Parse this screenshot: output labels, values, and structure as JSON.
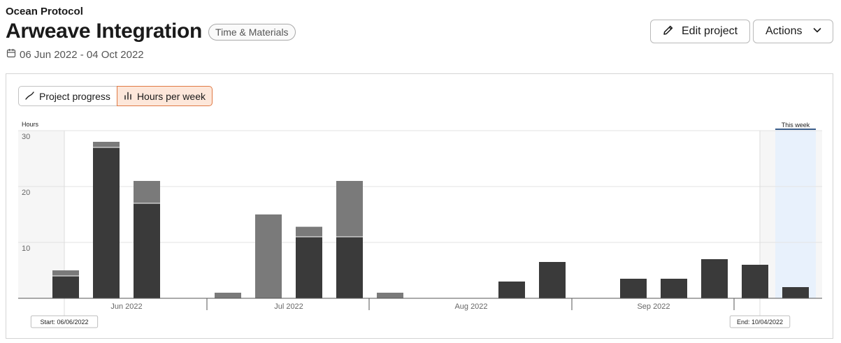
{
  "header": {
    "client": "Ocean Protocol",
    "title": "Arweave Integration",
    "badge": "Time & Materials",
    "date_range": "06 Jun 2022 - 04 Oct 2022"
  },
  "actions": {
    "edit_label": "Edit project",
    "actions_label": "Actions"
  },
  "icons": {
    "calendar": "calendar-icon",
    "edit": "pencil-icon",
    "actions": "chevron-down-icon",
    "progress": "line-chart-icon",
    "hours": "bar-chart-icon"
  },
  "colors": {
    "dark_bar": "#3a3a3a",
    "light_bar": "#7a7a7a",
    "active_toggle_bg": "#fde7da",
    "active_toggle_border": "#e07a45",
    "this_week_fill": "#e8f1fc",
    "this_week_line": "#3a5d8a"
  },
  "toggle": {
    "progress_label": "Project progress",
    "hours_label": "Hours per week",
    "active": "Hours per week"
  },
  "chart_data": {
    "type": "bar",
    "stacked": true,
    "ylabel": "Hours",
    "ylim": [
      0,
      30
    ],
    "yticks": [
      10,
      20,
      30
    ],
    "months": [
      "Jun 2022",
      "Jul 2022",
      "Aug 2022",
      "Sep 2022"
    ],
    "weeks": 19,
    "start_label": "Start: 06/06/2022",
    "end_label": "End: 10/04/2022",
    "this_week_label": "This week",
    "this_week_index": 18,
    "series": [
      {
        "values": [
          4,
          27,
          17,
          0,
          0,
          0,
          11,
          11,
          0,
          0,
          0,
          3,
          6.5,
          0,
          3.5,
          3.5,
          7,
          6,
          2
        ]
      },
      {
        "values": [
          1,
          1,
          4,
          0,
          1,
          15,
          1.8,
          10,
          1,
          0,
          0,
          0,
          0,
          0,
          0,
          0,
          0,
          0,
          0
        ]
      }
    ]
  }
}
